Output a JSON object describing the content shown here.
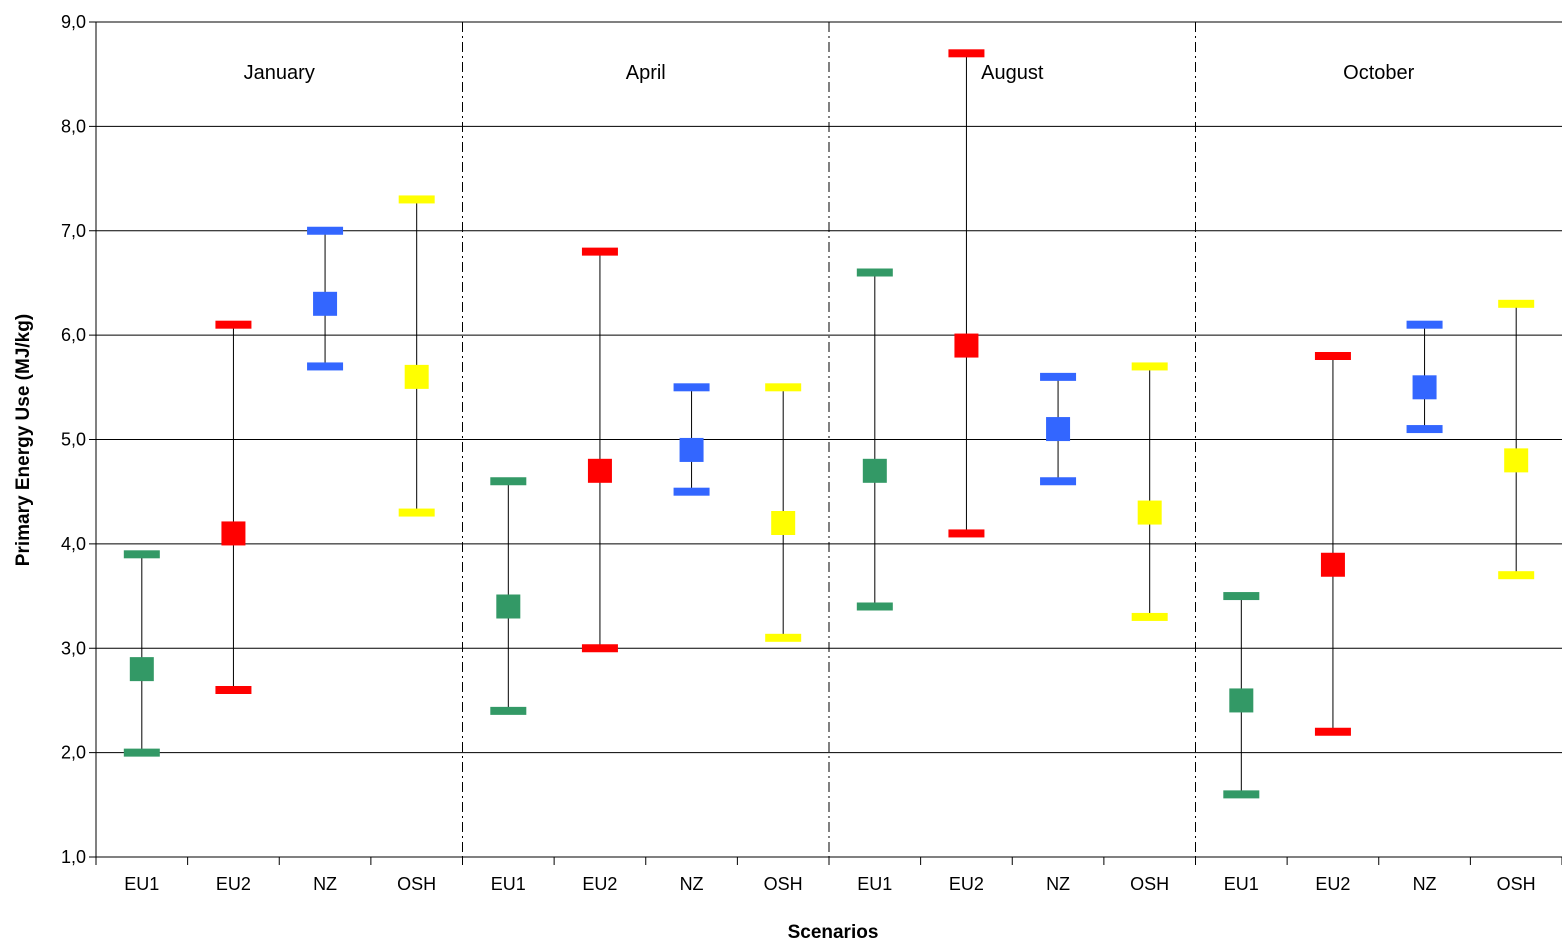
{
  "chart_data": {
    "type": "scatter",
    "subtype": "range-with-midpoint",
    "title": "",
    "xlabel": "Scenarios",
    "ylabel": "Primary Energy Use (MJ/kg)",
    "ylim": [
      1.0,
      9.0
    ],
    "yticks": [
      "1,0",
      "2,0",
      "3,0",
      "4,0",
      "5,0",
      "6,0",
      "7,0",
      "8,0",
      "9,0"
    ],
    "grid": "horizontal",
    "groups": [
      "January",
      "April",
      "August",
      "October"
    ],
    "categories": [
      "EU1",
      "EU2",
      "NZ",
      "OSH"
    ],
    "colors": {
      "EU1": "#339966",
      "EU2": "#ff0000",
      "NZ": "#3366ff",
      "OSH": "#ffff00"
    },
    "series": [
      {
        "group": "January",
        "points": [
          {
            "category": "EU1",
            "low": 2.0,
            "mid": 2.8,
            "high": 3.9
          },
          {
            "category": "EU2",
            "low": 2.6,
            "mid": 4.1,
            "high": 6.1
          },
          {
            "category": "NZ",
            "low": 5.7,
            "mid": 6.3,
            "high": 7.0
          },
          {
            "category": "OSH",
            "low": 4.3,
            "mid": 5.6,
            "high": 7.3
          }
        ]
      },
      {
        "group": "April",
        "points": [
          {
            "category": "EU1",
            "low": 2.4,
            "mid": 3.4,
            "high": 4.6
          },
          {
            "category": "EU2",
            "low": 3.0,
            "mid": 4.7,
            "high": 6.8
          },
          {
            "category": "NZ",
            "low": 4.5,
            "mid": 4.9,
            "high": 5.5
          },
          {
            "category": "OSH",
            "low": 3.1,
            "mid": 4.2,
            "high": 5.5
          }
        ]
      },
      {
        "group": "August",
        "points": [
          {
            "category": "EU1",
            "low": 3.4,
            "mid": 4.7,
            "high": 6.6
          },
          {
            "category": "EU2",
            "low": 4.1,
            "mid": 5.9,
            "high": 8.7
          },
          {
            "category": "NZ",
            "low": 4.6,
            "mid": 5.1,
            "high": 5.6
          },
          {
            "category": "OSH",
            "low": 3.3,
            "mid": 4.3,
            "high": 5.7
          }
        ]
      },
      {
        "group": "October",
        "points": [
          {
            "category": "EU1",
            "low": 1.6,
            "mid": 2.5,
            "high": 3.5
          },
          {
            "category": "EU2",
            "low": 2.2,
            "mid": 3.8,
            "high": 5.8
          },
          {
            "category": "NZ",
            "low": 5.1,
            "mid": 5.5,
            "high": 6.1
          },
          {
            "category": "OSH",
            "low": 3.7,
            "mid": 4.8,
            "high": 6.3
          }
        ]
      }
    ]
  }
}
